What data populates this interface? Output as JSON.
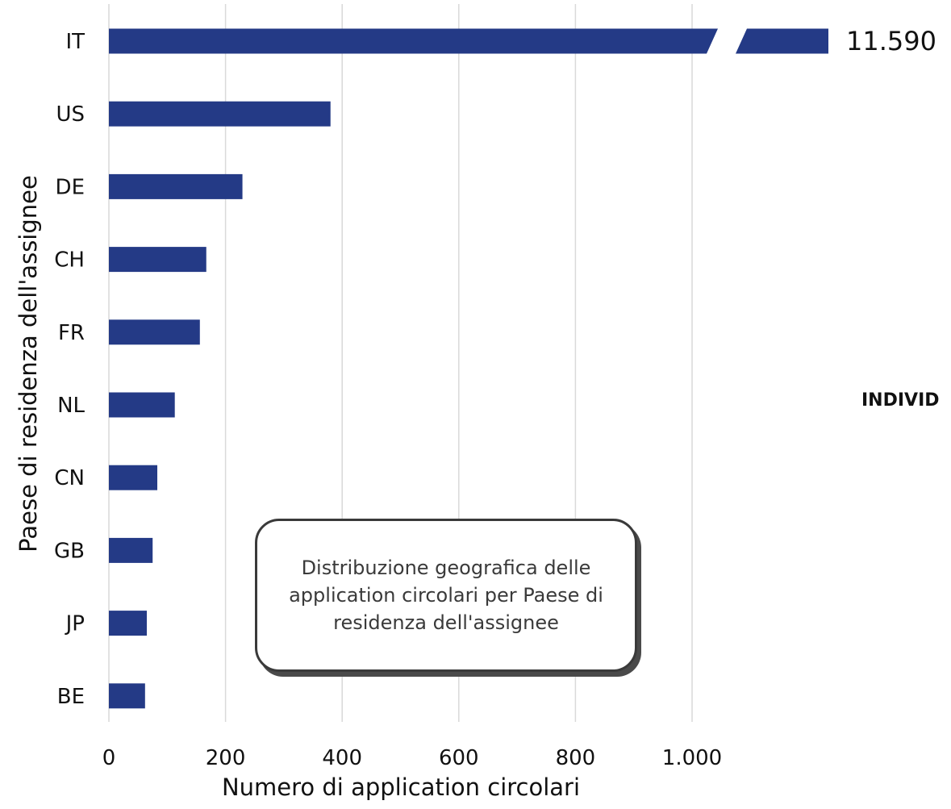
{
  "chart_data": {
    "type": "bar",
    "orientation": "horizontal",
    "categories": [
      "IT",
      "US",
      "DE",
      "CH",
      "FR",
      "NL",
      "CN",
      "GB",
      "JP",
      "BE"
    ],
    "values": [
      11590,
      380,
      229,
      167,
      156,
      113,
      83,
      75,
      65,
      62
    ],
    "data_labels": {
      "IT": "11.590"
    },
    "axis_break": true,
    "xlabel": "Numero di application circolari",
    "ylabel": "Paese di residenza dell'assignee",
    "xlim": [
      0,
      1000
    ],
    "xticks": [
      0,
      200,
      400,
      600,
      800,
      1000
    ],
    "xtick_labels": [
      "0",
      "200",
      "400",
      "600",
      "800",
      "1.000"
    ],
    "grid": "vertical",
    "bar_color": "#243a86",
    "side_label": "INDIVID",
    "annotation": "Distribuzione geografica delle application circolari per Paese di residenza dell'assignee"
  }
}
